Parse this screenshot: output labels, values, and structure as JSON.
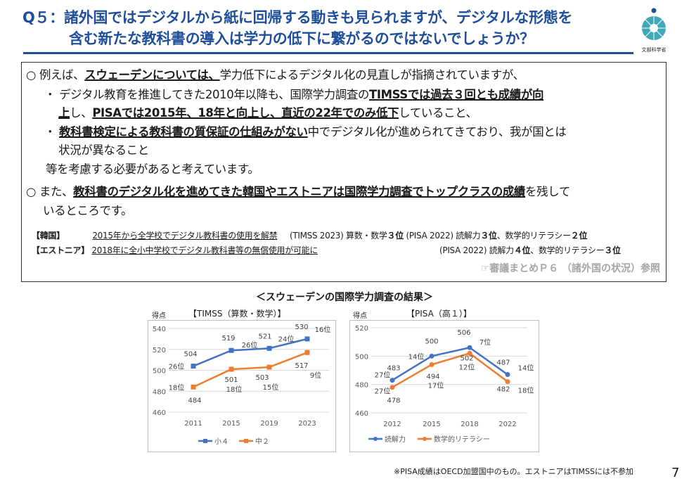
{
  "header": {
    "title_line1": "Q５：諸外国ではデジタルから紙に回帰する動きも見られますが、デジタルな形態を",
    "title_line2": "含む新たな教科書の導入は学力の低下に繋がるのではないでしょうか？",
    "logo_text": "文部科学省",
    "accent_color": "#1f4e9a"
  },
  "box": {
    "p1": [
      "○ 例えば、",
      "スウェーデンについては、",
      "学力低下によるデジタル化の見直しが指摘されていますが、"
    ],
    "b1": [
      "・ デジタル教育を推進してきた2010年以降も、国際学力調査の",
      "TIMSSでは過去３回とも成績が向"
    ],
    "b1b": [
      "上",
      "し、",
      "PISAでは2015年、18年と向上し、直近の22年でのみ低下",
      "していること、"
    ],
    "b2": [
      "・ ",
      "教科書検定による教科書の質保証の仕組みがない",
      "中でデジタル化が進められてきており、我が国とは"
    ],
    "b2b": "状況が異なること",
    "p1end": "等を考慮する必要があると考えています。",
    "p2": [
      "○ また、",
      "教科書のデジタル化を進めてきた韓国やエストニアは国際学力調査でトップクラスの成績",
      "を残して"
    ],
    "p2b": "いるところです。",
    "korea": {
      "label": "【韓国】",
      "text": "2015年から全学校でデジタル教科書の使用を解禁",
      "timss": "(TIMSS 2023) 算数・数学",
      "timss_rank": "３位",
      "pisa": "(PISA 2022) 読解力",
      "pisa_read_rank": "３位",
      "pisa_math": "、数学的リテラシー",
      "pisa_math_rank": "２位"
    },
    "estonia": {
      "label": "【エストニア】",
      "text": "2018年に全小中学校でデジタル教科書等の無償使用が可能に",
      "pisa": "(PISA 2022) 読解力",
      "pisa_read_rank": "４位",
      "pisa_math": "、数学的リテラシー",
      "pisa_math_rank": "３位"
    },
    "reference": "☞審議まとめＰ６ （諸外国の状況）参照"
  },
  "charts_title": "＜スウェーデンの国際学力調査の結果＞",
  "chart_data": [
    {
      "type": "line",
      "title": "【TIMSS（算数・数学）】",
      "ylabel": "得点",
      "categories": [
        "2011",
        "2015",
        "2019",
        "2023"
      ],
      "ylim": [
        460,
        540
      ],
      "yticks": [
        "460",
        "480",
        "500",
        "520",
        "540"
      ],
      "grid": true,
      "legend": "bottom",
      "series": [
        {
          "name": "小４",
          "color": "#4472c4",
          "marker": "square",
          "values": [
            504,
            519,
            521,
            530
          ],
          "ranks": [
            "26位",
            "26位",
            "24位",
            "16位"
          ]
        },
        {
          "name": "中２",
          "color": "#ed7d31",
          "marker": "square",
          "values": [
            484,
            501,
            503,
            517
          ],
          "ranks": [
            "18位",
            "18位",
            "15位",
            "9位"
          ]
        }
      ]
    },
    {
      "type": "line",
      "title": "【PISA（高１）】",
      "ylabel": "得点",
      "categories": [
        "2012",
        "2015",
        "2018",
        "2022"
      ],
      "ylim": [
        460,
        520
      ],
      "yticks": [
        "460",
        "480",
        "500",
        "520"
      ],
      "grid": true,
      "legend": "bottom",
      "series": [
        {
          "name": "読解力",
          "color": "#4472c4",
          "marker": "circle",
          "values": [
            483,
            500,
            506,
            487
          ],
          "ranks": [
            "27位",
            "14位",
            "7位",
            "14位"
          ]
        },
        {
          "name": "数学的リテラシー",
          "color": "#ed7d31",
          "marker": "circle",
          "values": [
            478,
            494,
            502,
            482
          ],
          "ranks": [
            "27位",
            "17位",
            "12位",
            "18位"
          ]
        }
      ]
    }
  ],
  "footnote": "※PISA成績はOECD加盟国中のもの。エストニアはTIMSSには不参加",
  "page_number": "7"
}
